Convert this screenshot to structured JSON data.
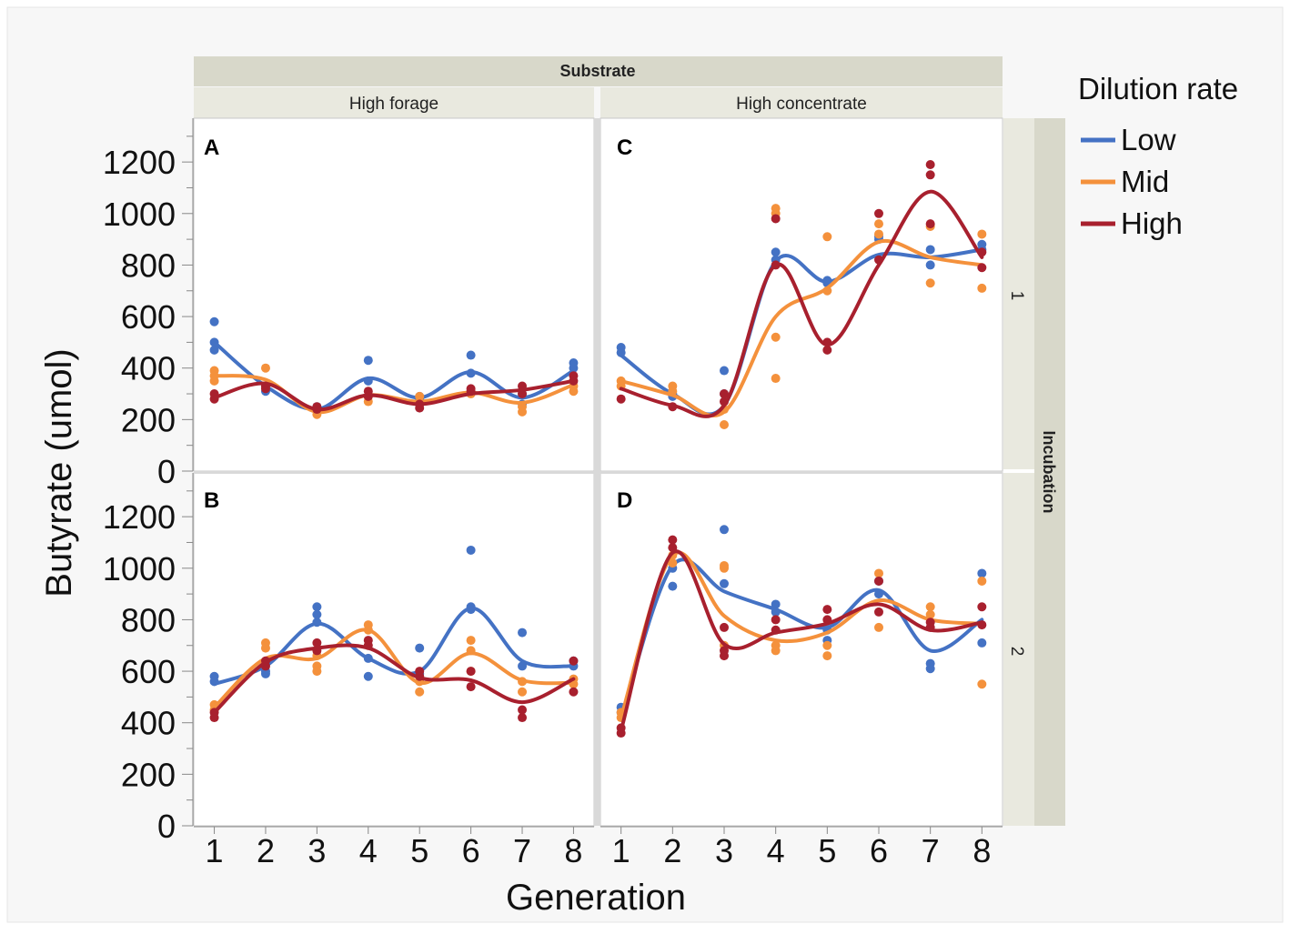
{
  "chart_data": {
    "type": "scatter",
    "fit": "smoothing spline",
    "strip_title": "Substrate",
    "row_strip_title": "Incubation",
    "columns": [
      "High forage",
      "High concentrate"
    ],
    "rows": [
      "1",
      "2"
    ],
    "xlabel": "Generation",
    "ylabel": "Butyrate (umol)",
    "x_ticks": [
      1,
      2,
      3,
      4,
      5,
      6,
      7,
      8
    ],
    "y_ticks": [
      0,
      200,
      400,
      600,
      800,
      1000,
      1200
    ],
    "ylim": [
      0,
      1370
    ],
    "xlim": [
      0.6,
      8.4
    ],
    "legend": {
      "title": "Dilution rate",
      "placement": "top-right",
      "entries": [
        {
          "name": "Low",
          "color": "#4472c4"
        },
        {
          "name": "Mid",
          "color": "#f4913c"
        },
        {
          "name": "High",
          "color": "#a8202e"
        }
      ]
    },
    "panels": [
      {
        "label": "A",
        "substrate": "High forage",
        "incubation": "1",
        "series": [
          {
            "name": "Low",
            "color": "#4472c4",
            "points": [
              [
                1,
                580
              ],
              [
                1,
                500
              ],
              [
                1,
                470
              ],
              [
                2,
                310
              ],
              [
                2,
                330
              ],
              [
                3,
                240
              ],
              [
                3,
                250
              ],
              [
                4,
                430
              ],
              [
                4,
                350
              ],
              [
                5,
                280
              ],
              [
                5,
                290
              ],
              [
                6,
                450
              ],
              [
                6,
                380
              ],
              [
                7,
                300
              ],
              [
                7,
                260
              ],
              [
                8,
                420
              ],
              [
                8,
                400
              ]
            ],
            "curve": [
              500,
              330,
              240,
              360,
              285,
              385,
              285,
              390
            ]
          },
          {
            "name": "Mid",
            "color": "#f4913c",
            "points": [
              [
                1,
                390
              ],
              [
                1,
                350
              ],
              [
                1,
                370
              ],
              [
                2,
                400
              ],
              [
                2,
                330
              ],
              [
                3,
                220
              ],
              [
                3,
                240
              ],
              [
                4,
                290
              ],
              [
                4,
                270
              ],
              [
                5,
                290
              ],
              [
                5,
                260
              ],
              [
                6,
                300
              ],
              [
                6,
                310
              ],
              [
                7,
                250
              ],
              [
                7,
                230
              ],
              [
                8,
                330
              ],
              [
                8,
                310
              ]
            ],
            "curve": [
              370,
              355,
              230,
              295,
              270,
              305,
              265,
              335
            ]
          },
          {
            "name": "High",
            "color": "#a8202e",
            "points": [
              [
                1,
                300
              ],
              [
                1,
                280
              ],
              [
                2,
                320
              ],
              [
                2,
                330
              ],
              [
                3,
                250
              ],
              [
                3,
                240
              ],
              [
                4,
                310
              ],
              [
                4,
                290
              ],
              [
                5,
                260
              ],
              [
                5,
                245
              ],
              [
                6,
                310
              ],
              [
                6,
                320
              ],
              [
                7,
                330
              ],
              [
                7,
                300
              ],
              [
                8,
                350
              ],
              [
                8,
                370
              ]
            ],
            "curve": [
              285,
              340,
              240,
              295,
              260,
              300,
              315,
              350
            ]
          }
        ]
      },
      {
        "label": "B",
        "substrate": "High forage",
        "incubation": "2",
        "series": [
          {
            "name": "Low",
            "color": "#4472c4",
            "points": [
              [
                1,
                580
              ],
              [
                1,
                560
              ],
              [
                2,
                600
              ],
              [
                2,
                590
              ],
              [
                3,
                850
              ],
              [
                3,
                820
              ],
              [
                3,
                790
              ],
              [
                4,
                650
              ],
              [
                4,
                580
              ],
              [
                5,
                690
              ],
              [
                5,
                590
              ],
              [
                6,
                1070
              ],
              [
                6,
                850
              ],
              [
                6,
                840
              ],
              [
                7,
                750
              ],
              [
                7,
                620
              ],
              [
                8,
                640
              ],
              [
                8,
                620
              ]
            ],
            "curve": [
              550,
              620,
              785,
              650,
              600,
              845,
              640,
              620
            ]
          },
          {
            "name": "Mid",
            "color": "#f4913c",
            "points": [
              [
                1,
                470
              ],
              [
                1,
                450
              ],
              [
                2,
                710
              ],
              [
                2,
                690
              ],
              [
                3,
                660
              ],
              [
                3,
                620
              ],
              [
                3,
                600
              ],
              [
                4,
                780
              ],
              [
                4,
                760
              ],
              [
                5,
                560
              ],
              [
                5,
                520
              ],
              [
                6,
                720
              ],
              [
                6,
                680
              ],
              [
                6,
                600
              ],
              [
                7,
                560
              ],
              [
                7,
                520
              ],
              [
                8,
                570
              ],
              [
                8,
                550
              ]
            ],
            "curve": [
              460,
              650,
              650,
              760,
              555,
              670,
              565,
              555
            ]
          },
          {
            "name": "High",
            "color": "#a8202e",
            "points": [
              [
                1,
                440
              ],
              [
                1,
                420
              ],
              [
                2,
                640
              ],
              [
                2,
                620
              ],
              [
                3,
                710
              ],
              [
                3,
                680
              ],
              [
                4,
                720
              ],
              [
                4,
                700
              ],
              [
                5,
                600
              ],
              [
                5,
                580
              ],
              [
                6,
                600
              ],
              [
                6,
                540
              ],
              [
                7,
                450
              ],
              [
                7,
                420
              ],
              [
                8,
                640
              ],
              [
                8,
                520
              ]
            ],
            "curve": [
              440,
              635,
              690,
              690,
              575,
              565,
              480,
              570
            ]
          }
        ]
      },
      {
        "label": "C",
        "substrate": "High concentrate",
        "incubation": "1",
        "series": [
          {
            "name": "Low",
            "color": "#4472c4",
            "points": [
              [
                1,
                480
              ],
              [
                1,
                460
              ],
              [
                2,
                290
              ],
              [
                2,
                300
              ],
              [
                3,
                390
              ],
              [
                3,
                300
              ],
              [
                4,
                850
              ],
              [
                4,
                820
              ],
              [
                5,
                730
              ],
              [
                5,
                740
              ],
              [
                6,
                910
              ],
              [
                6,
                900
              ],
              [
                7,
                860
              ],
              [
                7,
                800
              ],
              [
                8,
                880
              ],
              [
                8,
                860
              ]
            ],
            "curve": [
              450,
              300,
              255,
              815,
              735,
              840,
              830,
              860
            ]
          },
          {
            "name": "Mid",
            "color": "#f4913c",
            "points": [
              [
                1,
                350
              ],
              [
                1,
                330
              ],
              [
                2,
                330
              ],
              [
                2,
                310
              ],
              [
                3,
                240
              ],
              [
                3,
                180
              ],
              [
                4,
                1020
              ],
              [
                4,
                1000
              ],
              [
                4,
                520
              ],
              [
                4,
                360
              ],
              [
                5,
                910
              ],
              [
                5,
                700
              ],
              [
                6,
                960
              ],
              [
                6,
                920
              ],
              [
                7,
                950
              ],
              [
                7,
                730
              ],
              [
                8,
                920
              ],
              [
                8,
                710
              ]
            ],
            "curve": [
              350,
              295,
              230,
              600,
              710,
              890,
              830,
              800
            ]
          },
          {
            "name": "High",
            "color": "#a8202e",
            "points": [
              [
                1,
                280
              ],
              [
                2,
                250
              ],
              [
                3,
                300
              ],
              [
                3,
                270
              ],
              [
                4,
                980
              ],
              [
                4,
                800
              ],
              [
                5,
                500
              ],
              [
                5,
                470
              ],
              [
                6,
                1000
              ],
              [
                6,
                820
              ],
              [
                7,
                1190
              ],
              [
                7,
                1150
              ],
              [
                7,
                960
              ],
              [
                8,
                850
              ],
              [
                8,
                790
              ]
            ],
            "curve": [
              320,
              255,
              255,
              800,
              490,
              800,
              1085,
              830
            ]
          }
        ]
      },
      {
        "label": "D",
        "substrate": "High concentrate",
        "incubation": "2",
        "series": [
          {
            "name": "Low",
            "color": "#4472c4",
            "points": [
              [
                1,
                460
              ],
              [
                1,
                440
              ],
              [
                2,
                930
              ],
              [
                2,
                1000
              ],
              [
                3,
                1150
              ],
              [
                3,
                940
              ],
              [
                4,
                860
              ],
              [
                4,
                830
              ],
              [
                5,
                760
              ],
              [
                5,
                720
              ],
              [
                6,
                950
              ],
              [
                6,
                900
              ],
              [
                7,
                630
              ],
              [
                7,
                610
              ],
              [
                8,
                980
              ],
              [
                8,
                710
              ]
            ],
            "curve": [
              420,
              1010,
              910,
              840,
              770,
              915,
              680,
              800
            ]
          },
          {
            "name": "Mid",
            "color": "#f4913c",
            "points": [
              [
                1,
                440
              ],
              [
                1,
                420
              ],
              [
                2,
                1050
              ],
              [
                2,
                1020
              ],
              [
                3,
                1010
              ],
              [
                3,
                1000
              ],
              [
                3,
                700
              ],
              [
                4,
                700
              ],
              [
                4,
                680
              ],
              [
                5,
                700
              ],
              [
                5,
                660
              ],
              [
                6,
                980
              ],
              [
                6,
                770
              ],
              [
                7,
                850
              ],
              [
                7,
                820
              ],
              [
                8,
                950
              ],
              [
                8,
                550
              ]
            ],
            "curve": [
              420,
              1050,
              815,
              720,
              750,
              875,
              800,
              785
            ]
          },
          {
            "name": "High",
            "color": "#a8202e",
            "points": [
              [
                1,
                380
              ],
              [
                1,
                360
              ],
              [
                2,
                1110
              ],
              [
                2,
                1080
              ],
              [
                3,
                770
              ],
              [
                3,
                680
              ],
              [
                3,
                660
              ],
              [
                4,
                800
              ],
              [
                4,
                760
              ],
              [
                5,
                840
              ],
              [
                5,
                800
              ],
              [
                6,
                950
              ],
              [
                6,
                830
              ],
              [
                7,
                790
              ],
              [
                7,
                770
              ],
              [
                8,
                850
              ],
              [
                8,
                780
              ]
            ],
            "curve": [
              370,
              1060,
              705,
              750,
              785,
              860,
              760,
              790
            ]
          }
        ]
      }
    ]
  }
}
